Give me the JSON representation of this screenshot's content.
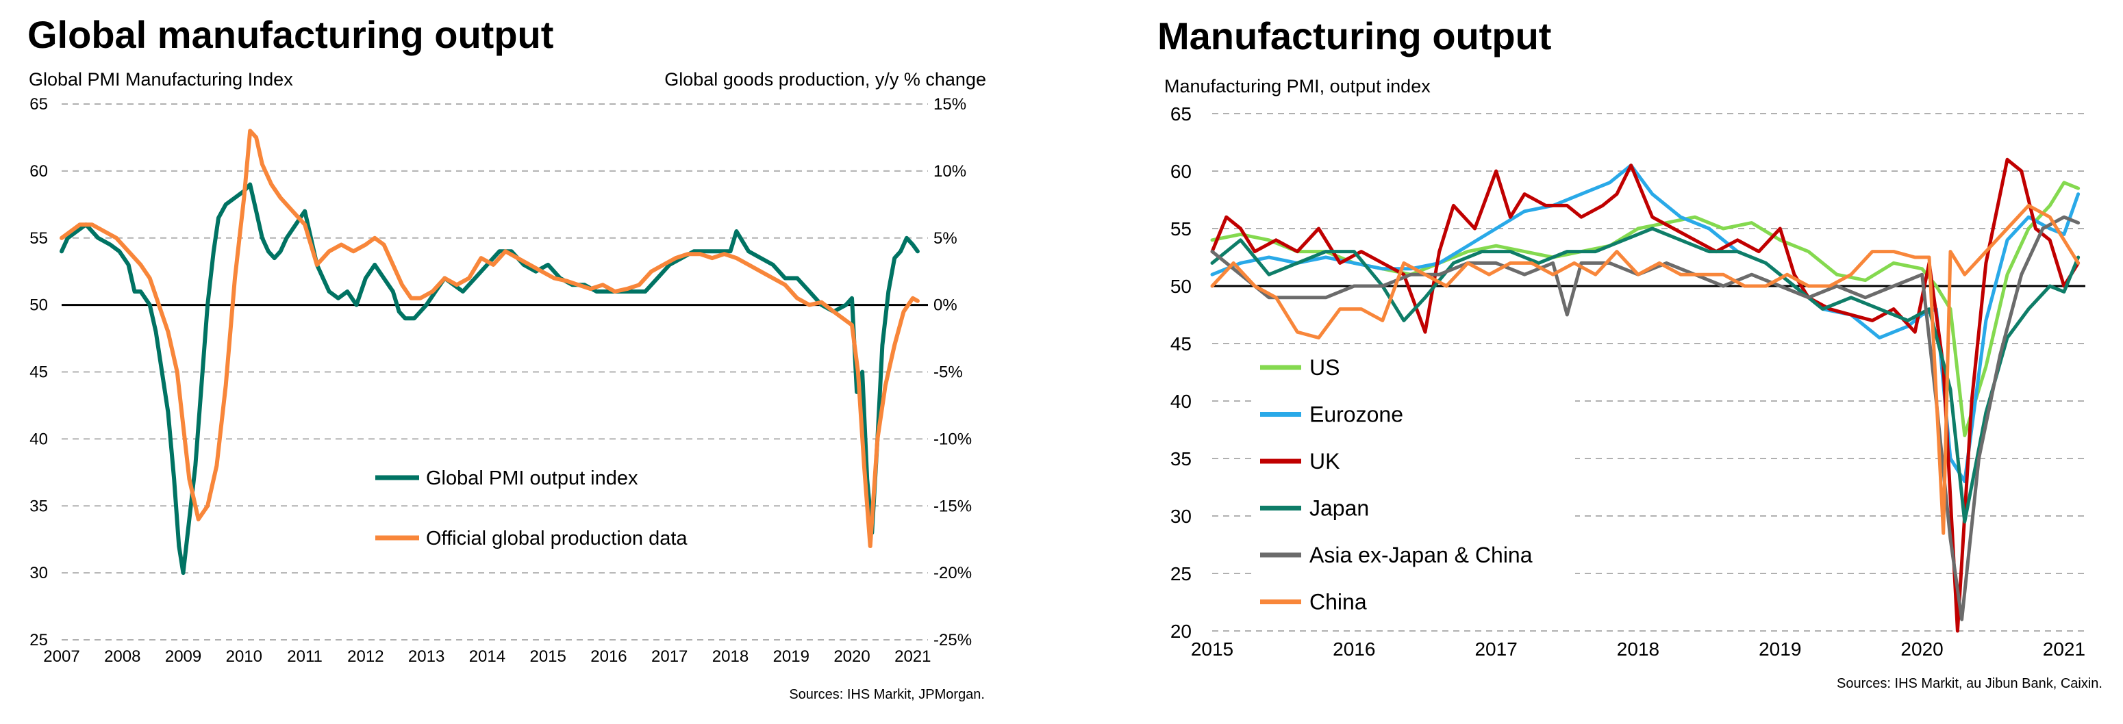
{
  "left": {
    "title": "Global manufacturing output",
    "left_axis_title": "Global PMI Manufacturing  Index",
    "right_axis_title": "Global goods production, y/y % change",
    "source": "Sources: IHS Markit, JPMorgan.",
    "chart_data": {
      "type": "line",
      "ylim_left": [
        25,
        65
      ],
      "ylim_right": [
        -25,
        15
      ],
      "xlim": [
        2007.0,
        2021.25
      ],
      "yticks_left": [
        "65",
        "60",
        "55",
        "50",
        "45",
        "40",
        "35",
        "30",
        "25"
      ],
      "yticks_right": [
        "15%",
        "10%",
        "5%",
        "0%",
        "-5%",
        "-10%",
        "-15%",
        "-20%",
        "-25%"
      ],
      "xticks": [
        "2007",
        "2008",
        "2009",
        "2010",
        "2011",
        "2012",
        "2013",
        "2014",
        "2015",
        "2016",
        "2017",
        "2018",
        "2019",
        "2020",
        "2021"
      ],
      "grid": "horizontal dashed",
      "legend_position": "center-right",
      "series": [
        {
          "name": "Global PMI output index",
          "color": "#007363",
          "axis": "left",
          "x": [
            2007.0,
            2007.1,
            2007.25,
            2007.4,
            2007.6,
            2007.8,
            2007.95,
            2008.1,
            2008.2,
            2008.3,
            2008.45,
            2008.55,
            2008.65,
            2008.75,
            2008.85,
            2008.93,
            2009.0,
            2009.1,
            2009.2,
            2009.3,
            2009.4,
            2009.5,
            2009.58,
            2009.7,
            2009.85,
            2010.0,
            2010.1,
            2010.2,
            2010.3,
            2010.4,
            2010.5,
            2010.6,
            2010.7,
            2010.85,
            2011.0,
            2011.1,
            2011.2,
            2011.3,
            2011.4,
            2011.55,
            2011.7,
            2011.85,
            2012.0,
            2012.15,
            2012.3,
            2012.45,
            2012.55,
            2012.65,
            2012.8,
            2013.0,
            2013.15,
            2013.3,
            2013.45,
            2013.6,
            2013.8,
            2014.0,
            2014.2,
            2014.4,
            2014.6,
            2014.8,
            2015.0,
            2015.2,
            2015.4,
            2015.6,
            2015.8,
            2016.0,
            2016.2,
            2016.4,
            2016.6,
            2016.8,
            2017.0,
            2017.2,
            2017.4,
            2017.6,
            2017.8,
            2018.0,
            2018.1,
            2018.3,
            2018.5,
            2018.7,
            2018.9,
            2019.1,
            2019.3,
            2019.5,
            2019.7,
            2019.9,
            2020.0,
            2020.08,
            2020.17,
            2020.25,
            2020.33,
            2020.42,
            2020.5,
            2020.6,
            2020.7,
            2020.8,
            2020.9,
            2021.0,
            2021.08
          ],
          "values": [
            54,
            55,
            55.5,
            56,
            55,
            54.5,
            54,
            53,
            51,
            51,
            50,
            48,
            45,
            42,
            37,
            32,
            30,
            34,
            38,
            44,
            50,
            54,
            56.5,
            57.5,
            58,
            58.5,
            59,
            57,
            55,
            54,
            53.5,
            54,
            55,
            56,
            57,
            55,
            53,
            52,
            51,
            50.5,
            51,
            50,
            52,
            53,
            52,
            51,
            49.5,
            49,
            49,
            50,
            51,
            52,
            51.5,
            51,
            52,
            53,
            54,
            54,
            53,
            52.5,
            53,
            52,
            51.5,
            51.5,
            51,
            51,
            51,
            51,
            51,
            52,
            53,
            53.5,
            54,
            54,
            54,
            54,
            55.5,
            54,
            53.5,
            53,
            52,
            52,
            51,
            50,
            49.5,
            50,
            50.5,
            43.5,
            45,
            37,
            33,
            40,
            47,
            51,
            53.5,
            54,
            55,
            54.5,
            54
          ]
        },
        {
          "name": "Official global production data",
          "color": "#F8863A",
          "axis": "right",
          "x": [
            2007.0,
            2007.15,
            2007.3,
            2007.5,
            2007.7,
            2007.9,
            2008.1,
            2008.3,
            2008.45,
            2008.6,
            2008.75,
            2008.9,
            2009.0,
            2009.1,
            2009.25,
            2009.4,
            2009.55,
            2009.7,
            2009.85,
            2010.0,
            2010.1,
            2010.2,
            2010.3,
            2010.45,
            2010.6,
            2010.8,
            2011.0,
            2011.2,
            2011.4,
            2011.6,
            2011.8,
            2012.0,
            2012.15,
            2012.3,
            2012.45,
            2012.6,
            2012.75,
            2012.9,
            2013.1,
            2013.3,
            2013.5,
            2013.7,
            2013.9,
            2014.1,
            2014.3,
            2014.5,
            2014.7,
            2014.9,
            2015.1,
            2015.3,
            2015.5,
            2015.7,
            2015.9,
            2016.1,
            2016.3,
            2016.5,
            2016.7,
            2016.9,
            2017.1,
            2017.3,
            2017.5,
            2017.7,
            2017.9,
            2018.1,
            2018.3,
            2018.5,
            2018.7,
            2018.9,
            2019.1,
            2019.3,
            2019.5,
            2019.7,
            2019.85,
            2020.0,
            2020.1,
            2020.2,
            2020.3,
            2020.42,
            2020.55,
            2020.7,
            2020.85,
            2021.0,
            2021.08
          ],
          "values": [
            5,
            5.5,
            6,
            6,
            5.5,
            5,
            4,
            3,
            2,
            0,
            -2,
            -5,
            -9,
            -13,
            -16,
            -15,
            -12,
            -6,
            2,
            8,
            13,
            12.5,
            10.5,
            9,
            8,
            7,
            6,
            3,
            4,
            4.5,
            4,
            4.5,
            5,
            4.5,
            3,
            1.5,
            0.5,
            0.5,
            1,
            2,
            1.5,
            2,
            3.5,
            3,
            4,
            3.5,
            3,
            2.5,
            2,
            1.8,
            1.5,
            1.2,
            1.5,
            1,
            1.2,
            1.5,
            2.5,
            3,
            3.5,
            3.8,
            3.8,
            3.5,
            3.8,
            3.5,
            3,
            2.5,
            2,
            1.5,
            0.5,
            0,
            0.2,
            -0.5,
            -1,
            -1.5,
            -5,
            -12,
            -18,
            -10,
            -6,
            -3,
            -0.5,
            0.5,
            0.3
          ]
        }
      ]
    }
  },
  "right": {
    "title": "Manufacturing output",
    "axis_title": "Manufacturing  PMI, output index",
    "source": "Sources: IHS Markit, au Jibun Bank, Caixin.",
    "chart_data": {
      "type": "line",
      "ylim": [
        20,
        65
      ],
      "xlim": [
        2015.0,
        2021.15
      ],
      "yticks": [
        "65",
        "60",
        "55",
        "50",
        "45",
        "40",
        "35",
        "30",
        "25",
        "20"
      ],
      "xticks": [
        "2015",
        "2016",
        "2017",
        "2018",
        "2019",
        "2020",
        "2021"
      ],
      "grid": "horizontal dashed",
      "legend_position": "left",
      "series": [
        {
          "name": "US",
          "color": "#84D94F",
          "x": [
            2015.0,
            2015.2,
            2015.4,
            2015.6,
            2015.8,
            2016.0,
            2016.2,
            2016.4,
            2016.6,
            2016.8,
            2017.0,
            2017.2,
            2017.4,
            2017.6,
            2017.8,
            2018.0,
            2018.2,
            2018.4,
            2018.6,
            2018.8,
            2019.0,
            2019.2,
            2019.4,
            2019.6,
            2019.8,
            2020.0,
            2020.1,
            2020.2,
            2020.3,
            2020.45,
            2020.6,
            2020.75,
            2020.9,
            2021.0,
            2021.1
          ],
          "values": [
            54,
            54.5,
            54,
            53,
            53,
            52,
            51.5,
            51,
            52,
            53,
            53.5,
            53,
            52.5,
            53,
            53.5,
            55,
            55.5,
            56,
            55,
            55.5,
            54,
            53,
            51,
            50.5,
            52,
            51.5,
            50,
            48,
            37,
            43,
            51,
            55,
            57,
            59,
            58.5
          ]
        },
        {
          "name": "Eurozone",
          "color": "#29A9E8",
          "x": [
            2015.0,
            2015.2,
            2015.4,
            2015.6,
            2015.8,
            2016.0,
            2016.2,
            2016.4,
            2016.6,
            2016.8,
            2017.0,
            2017.2,
            2017.4,
            2017.6,
            2017.8,
            2017.95,
            2018.1,
            2018.3,
            2018.5,
            2018.7,
            2018.9,
            2019.1,
            2019.3,
            2019.5,
            2019.7,
            2019.9,
            2020.0,
            2020.1,
            2020.2,
            2020.3,
            2020.45,
            2020.6,
            2020.75,
            2020.9,
            2021.0,
            2021.1
          ],
          "values": [
            51,
            52,
            52.5,
            52,
            52.5,
            52,
            51.5,
            51.5,
            52,
            53.5,
            55,
            56.5,
            57,
            58,
            59,
            60.5,
            58,
            56,
            55,
            53,
            52,
            50,
            48,
            47.5,
            45.5,
            46.5,
            47.5,
            48,
            35,
            33,
            47,
            54,
            56,
            55,
            54.5,
            58
          ]
        },
        {
          "name": "UK",
          "color": "#C00000",
          "x": [
            2015.0,
            2015.1,
            2015.2,
            2015.3,
            2015.45,
            2015.6,
            2015.75,
            2015.9,
            2016.05,
            2016.2,
            2016.35,
            2016.5,
            2016.6,
            2016.7,
            2016.85,
            2017.0,
            2017.1,
            2017.2,
            2017.35,
            2017.5,
            2017.6,
            2017.75,
            2017.85,
            2017.95,
            2018.1,
            2018.25,
            2018.4,
            2018.55,
            2018.7,
            2018.85,
            2019.0,
            2019.1,
            2019.2,
            2019.35,
            2019.5,
            2019.65,
            2019.8,
            2019.95,
            2020.05,
            2020.15,
            2020.25,
            2020.35,
            2020.45,
            2020.6,
            2020.7,
            2020.8,
            2020.9,
            2021.0,
            2021.1
          ],
          "values": [
            53,
            56,
            55,
            53,
            54,
            53,
            55,
            52,
            53,
            52,
            51,
            46,
            53,
            57,
            55,
            60,
            56,
            58,
            57,
            57,
            56,
            57,
            58,
            60.5,
            56,
            55,
            54,
            53,
            54,
            53,
            55,
            51,
            49,
            48,
            47.5,
            47,
            48,
            46,
            52,
            43,
            20,
            40,
            52,
            61,
            60,
            55,
            54,
            50,
            52
          ]
        },
        {
          "name": "Japan",
          "color": "#0E7D68",
          "x": [
            2015.0,
            2015.2,
            2015.4,
            2015.6,
            2015.8,
            2016.0,
            2016.2,
            2016.35,
            2016.5,
            2016.7,
            2016.9,
            2017.1,
            2017.3,
            2017.5,
            2017.7,
            2017.9,
            2018.1,
            2018.3,
            2018.5,
            2018.7,
            2018.9,
            2019.1,
            2019.3,
            2019.5,
            2019.7,
            2019.9,
            2020.05,
            2020.2,
            2020.3,
            2020.45,
            2020.6,
            2020.75,
            2020.9,
            2021.0,
            2021.1
          ],
          "values": [
            52,
            54,
            51,
            52,
            53,
            53,
            50,
            47,
            49,
            52,
            53,
            53,
            52,
            53,
            53,
            54,
            55,
            54,
            53,
            53,
            52,
            50,
            48,
            49,
            48,
            47,
            48,
            41,
            29.5,
            39,
            45.5,
            48,
            50,
            49.5,
            52.5
          ]
        },
        {
          "name": "Asia ex-Japan & China",
          "color": "#6B6B6B",
          "x": [
            2015.0,
            2015.2,
            2015.4,
            2015.6,
            2015.8,
            2016.0,
            2016.2,
            2016.4,
            2016.6,
            2016.8,
            2017.0,
            2017.2,
            2017.4,
            2017.5,
            2017.6,
            2017.8,
            2018.0,
            2018.2,
            2018.4,
            2018.6,
            2018.8,
            2019.0,
            2019.2,
            2019.4,
            2019.6,
            2019.8,
            2020.0,
            2020.1,
            2020.2,
            2020.28,
            2020.4,
            2020.55,
            2020.7,
            2020.85,
            2021.0,
            2021.1
          ],
          "values": [
            53,
            51,
            49,
            49,
            49,
            50,
            50,
            51,
            51,
            52,
            52,
            51,
            52,
            47.5,
            52,
            52,
            51,
            52,
            51,
            50,
            51,
            50,
            49,
            50,
            49,
            50,
            51,
            40,
            28,
            21,
            35,
            44,
            51,
            55,
            56,
            55.5
          ]
        },
        {
          "name": "China",
          "color": "#F8863A",
          "x": [
            2015.0,
            2015.15,
            2015.3,
            2015.45,
            2015.6,
            2015.75,
            2015.9,
            2016.05,
            2016.2,
            2016.35,
            2016.5,
            2016.65,
            2016.8,
            2016.95,
            2017.1,
            2017.25,
            2017.4,
            2017.55,
            2017.7,
            2017.85,
            2018.0,
            2018.15,
            2018.3,
            2018.45,
            2018.6,
            2018.75,
            2018.9,
            2019.05,
            2019.2,
            2019.35,
            2019.5,
            2019.65,
            2019.8,
            2019.95,
            2020.05,
            2020.15,
            2020.2,
            2020.3,
            2020.45,
            2020.6,
            2020.75,
            2020.9,
            2021.0,
            2021.1
          ],
          "values": [
            50,
            52,
            50,
            49,
            46,
            45.5,
            48,
            48,
            47,
            52,
            51,
            50,
            52,
            51,
            52,
            52,
            51,
            52,
            51,
            53,
            51,
            52,
            51,
            51,
            51,
            50,
            50,
            51,
            50,
            50,
            51,
            53,
            53,
            52.5,
            52.5,
            28.5,
            53,
            51,
            53,
            55,
            57,
            56,
            54,
            52
          ]
        }
      ]
    }
  }
}
